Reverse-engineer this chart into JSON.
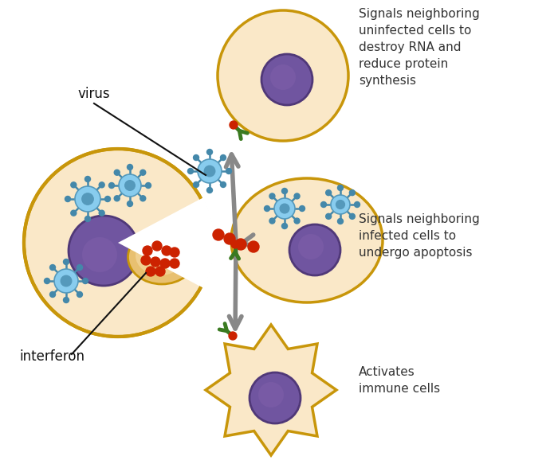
{
  "bg_color": "#ffffff",
  "cell_fill": "#fae8c8",
  "cell_fill2": "#f5dfc0",
  "cell_edge": "#c8960a",
  "nucleus_fill": "#7055a0",
  "nucleus_edge": "#503878",
  "virus_body": "#88ccee",
  "virus_center": "#5599bb",
  "virus_spike_color": "#4488aa",
  "interferon_color": "#cc2200",
  "receptor_color": "#3a7a20",
  "arrow_color": "#888888",
  "text_color": "#333333",
  "label_color": "#111111",
  "text1": "Signals neighboring\nuninfected cells to\ndestroy RNA and\nreduce protein\nsynthesis",
  "text2": "Signals neighboring\ninfected cells to\nundergo apoptosis",
  "text3": "Activates\nimmune cells"
}
